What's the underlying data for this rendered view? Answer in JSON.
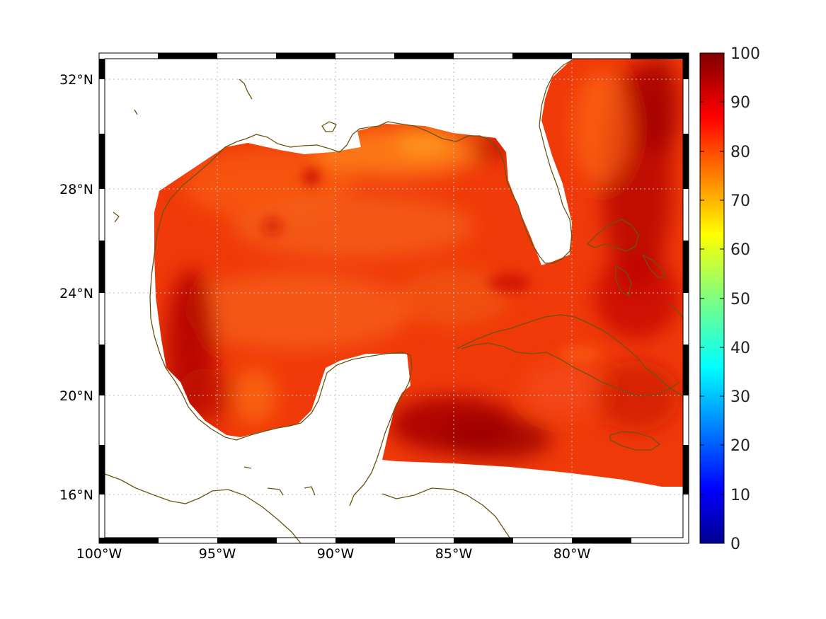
{
  "map": {
    "lon_labels": [
      "100°W",
      "95°W",
      "90°W",
      "85°W",
      "80°W"
    ],
    "lat_labels": [
      "32°N",
      "28°N",
      "24°N",
      "20°N",
      "16°N"
    ],
    "lon_range": [
      -100,
      -75
    ],
    "lat_range": [
      15,
      33
    ],
    "projection": "mercator",
    "graticule": "dotted",
    "coastline_color": "#6b5312"
  },
  "colorbar": {
    "ticks": [
      "100",
      "90",
      "80",
      "70",
      "60",
      "50",
      "40",
      "30",
      "20",
      "10",
      "0"
    ],
    "range": [
      0,
      100
    ],
    "colormap": "jet"
  },
  "field_colors": {
    "dominant": "#f03a0a",
    "high": "#a50000",
    "low": "#ff8a00"
  }
}
